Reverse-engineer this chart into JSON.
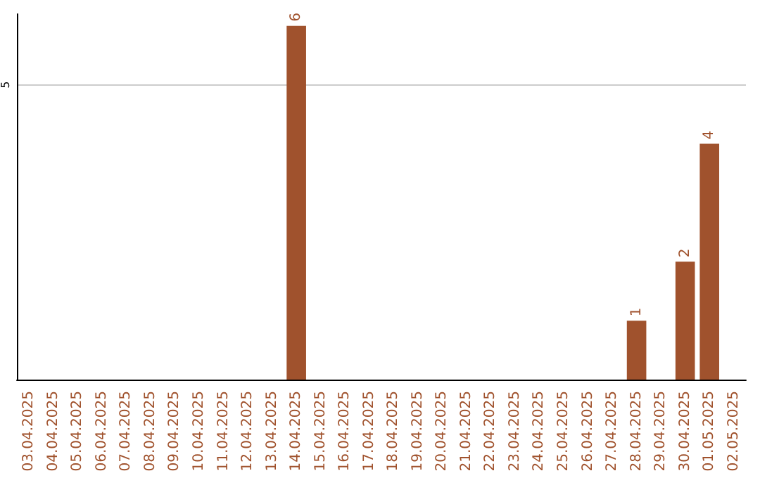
{
  "chart_data": {
    "type": "bar",
    "categories": [
      "03.04.2025",
      "04.04.2025",
      "05.04.2025",
      "06.04.2025",
      "07.04.2025",
      "08.04.2025",
      "09.04.2025",
      "10.04.2025",
      "11.04.2025",
      "12.04.2025",
      "13.04.2025",
      "14.04.2025",
      "15.04.2025",
      "16.04.2025",
      "17.04.2025",
      "18.04.2025",
      "19.04.2025",
      "20.04.2025",
      "21.04.2025",
      "22.04.2025",
      "23.04.2025",
      "24.04.2025",
      "25.04.2025",
      "26.04.2025",
      "27.04.2025",
      "28.04.2025",
      "29.04.2025",
      "30.04.2025",
      "01.05.2025",
      "02.05.2025"
    ],
    "values": [
      0,
      0,
      0,
      0,
      0,
      0,
      0,
      0,
      0,
      0,
      0,
      6,
      0,
      0,
      0,
      0,
      0,
      0,
      0,
      0,
      0,
      0,
      0,
      0,
      0,
      1,
      0,
      2,
      4,
      0
    ],
    "value_labels": [
      null,
      null,
      null,
      null,
      null,
      null,
      null,
      null,
      null,
      null,
      null,
      "6",
      null,
      null,
      null,
      null,
      null,
      null,
      null,
      null,
      null,
      null,
      null,
      null,
      null,
      "1",
      null,
      "2",
      "4",
      null
    ],
    "color": "#a0522d",
    "ylim": [
      0,
      6.2
    ],
    "yticks": [
      5
    ],
    "grid": "y"
  }
}
